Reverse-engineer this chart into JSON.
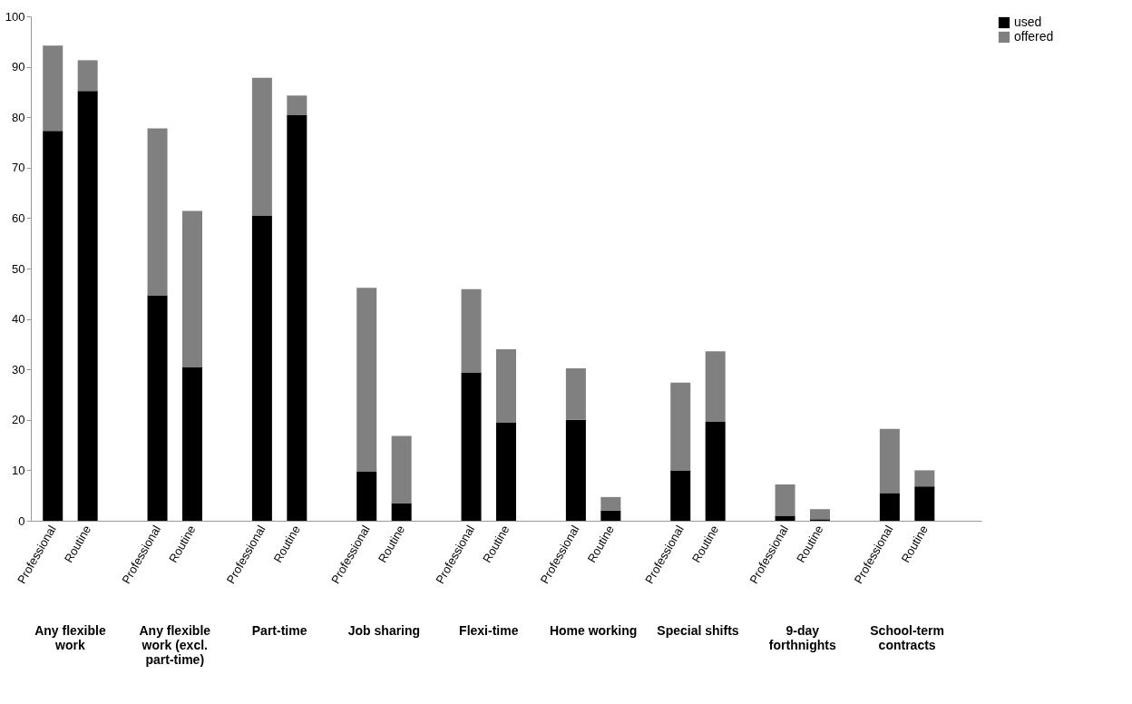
{
  "chart_data": {
    "type": "bar",
    "stacked": true,
    "categories": [
      "Professional",
      "Routine",
      "Professional",
      "Routine",
      "Professional",
      "Routine",
      "Professional",
      "Routine",
      "Professional",
      "Routine",
      "Professional",
      "Routine",
      "Professional",
      "Routine",
      "Professional",
      "Routine",
      "Professional",
      "Routine"
    ],
    "annotations": [
      "Any flexible work",
      "Any flexible work (excl. part-time)",
      "Part-time",
      "Job sharing",
      "Flexi-time",
      "Home working",
      "Special shifts",
      "9-day forthnights",
      "School-term contracts"
    ],
    "series": [
      {
        "name": "used",
        "color": "#000000",
        "values": [
          77.3,
          85.2,
          44.7,
          30.4,
          60.5,
          80.5,
          9.8,
          3.5,
          29.3,
          19.5,
          20.0,
          2.0,
          10.0,
          19.6,
          1.0,
          0.3,
          5.5,
          6.8
        ]
      },
      {
        "name": "offered",
        "color": "#808080",
        "values": [
          16.9,
          6.1,
          33.1,
          31.0,
          27.3,
          3.8,
          36.4,
          13.3,
          16.6,
          14.5,
          10.2,
          2.7,
          17.4,
          14.0,
          6.2,
          2.0,
          12.7,
          3.2
        ]
      }
    ],
    "ylim": [
      0,
      100
    ],
    "yticks": [
      0,
      10,
      20,
      30,
      40,
      50,
      60,
      70,
      80,
      90,
      100
    ],
    "grid": false,
    "legend": "right"
  }
}
